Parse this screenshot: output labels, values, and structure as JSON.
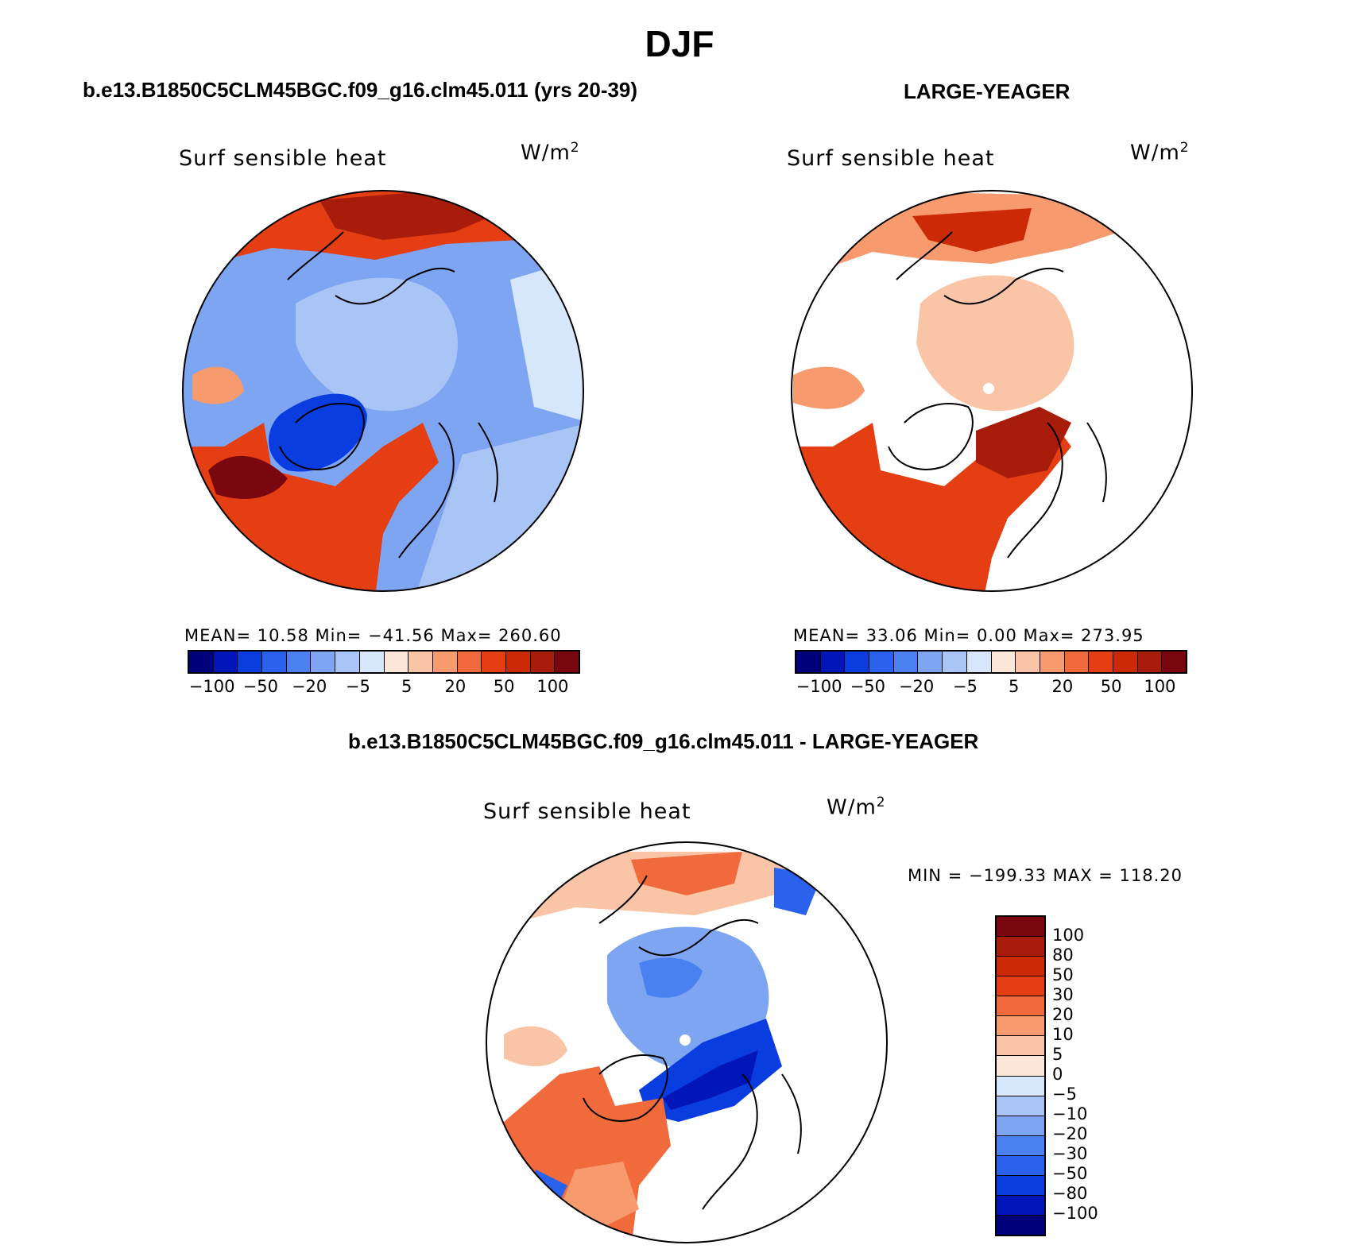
{
  "title": "DJF",
  "palette": [
    "#00007a",
    "#0016b8",
    "#0a3de0",
    "#2a62ee",
    "#4a80f0",
    "#7ea5f2",
    "#a9c5f6",
    "#d6e6fb",
    "#fde7d9",
    "#fac4a6",
    "#f79a6e",
    "#f06a3b",
    "#e53e12",
    "#cc2a07",
    "#a71c0b",
    "#7a0710"
  ],
  "icons": {
    "pole": "white-dot-icon"
  },
  "panels": {
    "left": {
      "run_title": "b.e13.B1850C5CLM45BGC.f09_g16.clm45.011 (yrs 20-39)",
      "plot_title": "Surf sensible heat",
      "units_base": "W/m",
      "units_exp": "2",
      "stats": "MEAN=   10.58   Min=  −41.56   Max=  260.60",
      "ticks": [
        "−100",
        "−50",
        "−20",
        "−5",
        "5",
        "20",
        "50",
        "100"
      ]
    },
    "right": {
      "run_title": "LARGE-YEAGER",
      "plot_title": "Surf sensible heat",
      "units_base": "W/m",
      "units_exp": "2",
      "stats": "MEAN=   33.06   Min=     0.00   Max=  273.95",
      "ticks": [
        "−100",
        "−50",
        "−20",
        "−5",
        "5",
        "20",
        "50",
        "100"
      ]
    },
    "diff": {
      "run_title": "b.e13.B1850C5CLM45BGC.f09_g16.clm45.011 - LARGE-YEAGER",
      "plot_title": "Surf sensible heat",
      "units_base": "W/m",
      "units_exp": "2",
      "minmax": "MIN = −199.33 MAX = 118.20",
      "ticks": [
        "100",
        "80",
        "50",
        "30",
        "20",
        "10",
        "5",
        "0",
        "−5",
        "−10",
        "−20",
        "−30",
        "−50",
        "−80",
        "−100"
      ]
    }
  },
  "chart_data": [
    {
      "type": "heatmap",
      "projection": "north polar stereographic",
      "title": "Surf sensible heat",
      "units": "W/m2",
      "season": "DJF",
      "case": "b.e13.B1850C5CLM45BGC.f09_g16.clm45.011 (yrs 20-39)",
      "stats": {
        "mean": 10.58,
        "min": -41.56,
        "max": 260.6
      },
      "levels": [
        -100,
        -50,
        -20,
        -5,
        5,
        20,
        50,
        100
      ]
    },
    {
      "type": "heatmap",
      "projection": "north polar stereographic",
      "title": "Surf sensible heat",
      "units": "W/m2",
      "season": "DJF",
      "case": "LARGE-YEAGER",
      "stats": {
        "mean": 33.06,
        "min": 0.0,
        "max": 273.95
      },
      "levels": [
        -100,
        -50,
        -20,
        -5,
        5,
        20,
        50,
        100
      ]
    },
    {
      "type": "heatmap",
      "projection": "north polar stereographic",
      "title": "Surf sensible heat",
      "units": "W/m2",
      "season": "DJF",
      "case": "b.e13.B1850C5CLM45BGC.f09_g16.clm45.011 - LARGE-YEAGER",
      "stats": {
        "min": -199.33,
        "max": 118.2
      },
      "levels": [
        -100,
        -80,
        -50,
        -30,
        -20,
        -10,
        -5,
        0,
        5,
        10,
        20,
        30,
        50,
        80,
        100
      ]
    }
  ]
}
